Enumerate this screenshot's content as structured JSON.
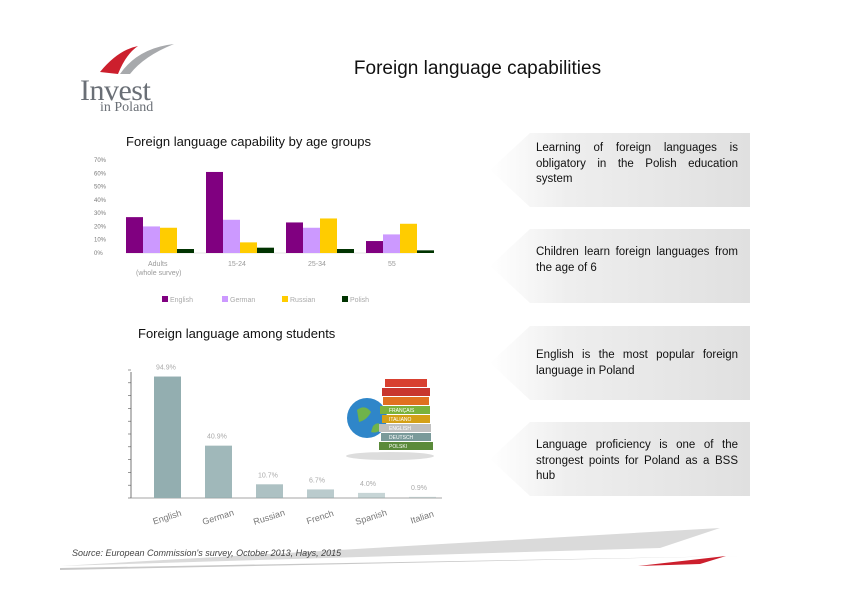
{
  "logo": {
    "word": "Invest",
    "sub": "in Poland"
  },
  "title": "Foreign language capabilities",
  "sections": {
    "age_groups": "Foreign language capability by age groups",
    "students": "Foreign language among students"
  },
  "callouts": [
    {
      "text": "Learning of foreign languages is obligatory in the Polish education system"
    },
    {
      "text": "Children learn foreign languages from the age of 6"
    },
    {
      "text": "English is the most popular foreign language in Poland"
    },
    {
      "text": "Language proficiency is one of the strongest points for Poland as a BSS hub"
    }
  ],
  "source": "Source: European Commission's survey, October 2013, Hays, 2015",
  "book_labels": [
    "FRANÇAIS",
    "ITALIANO",
    "ENGLISH",
    "DEUTSCH",
    "POLSKI"
  ],
  "colors": {
    "english": "#800080",
    "german": "#cc99ff",
    "russian": "#ffcc00",
    "polish": "#003300",
    "bar2": "#93aeb0",
    "accent": "#cc1f2d"
  },
  "chart_data": [
    {
      "type": "bar",
      "title": "Foreign language capability by age groups",
      "ylim": [
        0,
        70
      ],
      "yticks": [
        "0%",
        "10%",
        "20%",
        "30%",
        "40%",
        "50%",
        "60%",
        "70%"
      ],
      "categories": [
        "Adults",
        "15-24",
        "25-34",
        "55"
      ],
      "category_sub": [
        "(whole survey)",
        "",
        "",
        ""
      ],
      "series": [
        {
          "name": "English",
          "values": [
            27,
            61,
            23,
            9
          ]
        },
        {
          "name": "German",
          "values": [
            20,
            25,
            19,
            14
          ]
        },
        {
          "name": "Russian",
          "values": [
            19,
            8,
            26,
            22
          ]
        },
        {
          "name": "Polish",
          "values": [
            3,
            4,
            3,
            2
          ]
        }
      ],
      "legend": "bottom",
      "grid": false
    },
    {
      "type": "bar",
      "title": "Foreign language among students",
      "categories": [
        "English",
        "German",
        "Russian",
        "French",
        "Spanish",
        "Italian"
      ],
      "values": [
        94.9,
        40.9,
        10.7,
        6.7,
        4.0,
        0.9
      ],
      "value_labels": [
        "94.9%",
        "40.9%",
        "10.7%",
        "6.7%",
        "4.0%",
        "0.9%"
      ],
      "ylim": [
        0,
        100
      ],
      "grid": false
    }
  ]
}
